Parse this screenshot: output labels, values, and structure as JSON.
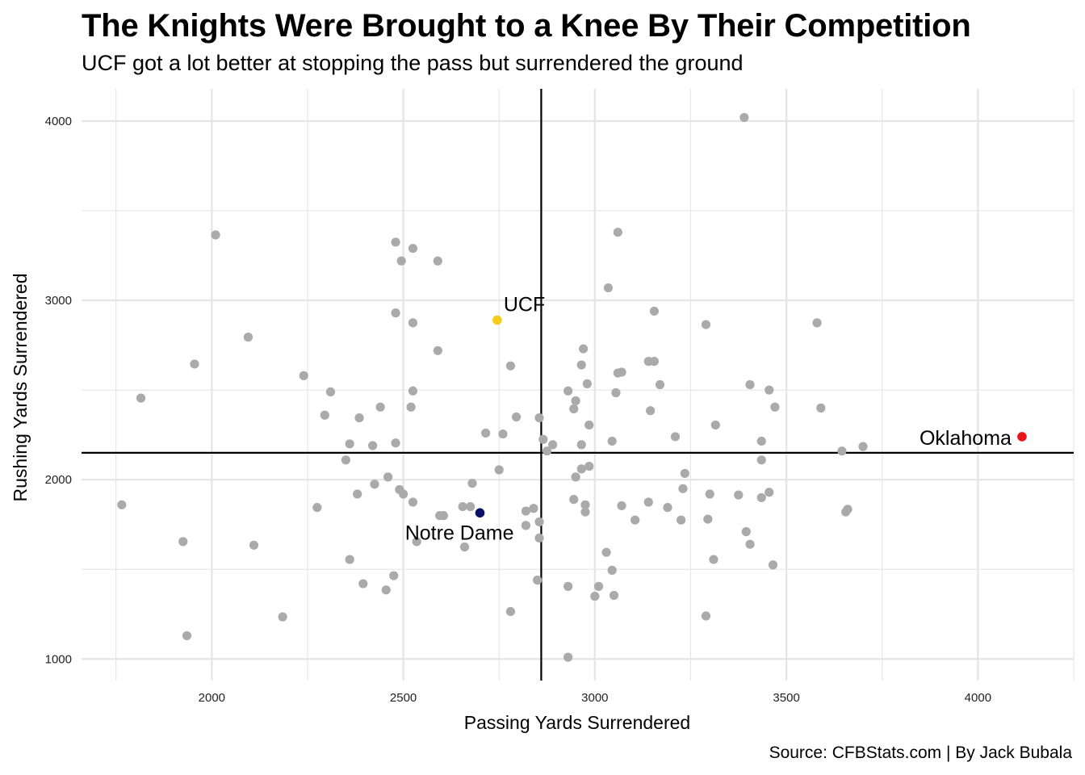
{
  "chart_data": {
    "type": "scatter",
    "title": "The Knights Were Brought to a Knee By Their Competition",
    "subtitle": "UCF got a lot better at stopping the pass but surrendered the ground",
    "caption": "Source: CFBStats.com | By Jack Bubala",
    "xlabel": "Passing Yards Surrendered",
    "ylabel": "Rushing Yards Surrendered",
    "xlim": [
      1660,
      4250
    ],
    "ylim": [
      880,
      4180
    ],
    "x_ticks": [
      2000,
      2500,
      3000,
      3500,
      4000
    ],
    "y_ticks": [
      1000,
      2000,
      3000,
      4000
    ],
    "grid": true,
    "reference_lines": {
      "x": 2860,
      "y": 2150
    },
    "colors": {
      "default": "#aaaaaa",
      "ucf": "#f6cc1b",
      "notre_dame": "#0c1168",
      "oklahoma": "#e8141a",
      "grid": "#e6e6e6",
      "reference": "#000000"
    },
    "highlighted": [
      {
        "label": "UCF",
        "x": 2745,
        "y": 2890,
        "color": "#f6cc1b"
      },
      {
        "label": "Notre Dame",
        "x": 2700,
        "y": 1815,
        "color": "#0c1168"
      },
      {
        "label": "Oklahoma",
        "x": 4115,
        "y": 2240,
        "color": "#e8141a"
      }
    ],
    "points": [
      [
        3390,
        4020
      ],
      [
        2010,
        3365
      ],
      [
        3060,
        3380
      ],
      [
        2480,
        3325
      ],
      [
        2525,
        3290
      ],
      [
        2495,
        3220
      ],
      [
        2590,
        3220
      ],
      [
        3035,
        3070
      ],
      [
        2480,
        2930
      ],
      [
        3155,
        2940
      ],
      [
        2525,
        2875
      ],
      [
        3290,
        2865
      ],
      [
        3580,
        2875
      ],
      [
        2095,
        2795
      ],
      [
        2590,
        2720
      ],
      [
        2970,
        2730
      ],
      [
        1955,
        2645
      ],
      [
        2780,
        2635
      ],
      [
        2965,
        2640
      ],
      [
        3140,
        2660
      ],
      [
        3155,
        2660
      ],
      [
        3060,
        2595
      ],
      [
        3070,
        2600
      ],
      [
        2240,
        2580
      ],
      [
        2980,
        2535
      ],
      [
        3170,
        2530
      ],
      [
        3405,
        2530
      ],
      [
        2930,
        2495
      ],
      [
        3055,
        2485
      ],
      [
        3455,
        2500
      ],
      [
        1815,
        2455
      ],
      [
        2310,
        2490
      ],
      [
        2525,
        2495
      ],
      [
        2950,
        2440
      ],
      [
        2440,
        2405
      ],
      [
        2520,
        2405
      ],
      [
        2945,
        2395
      ],
      [
        3145,
        2385
      ],
      [
        3470,
        2405
      ],
      [
        3590,
        2400
      ],
      [
        2295,
        2360
      ],
      [
        2385,
        2345
      ],
      [
        2795,
        2350
      ],
      [
        2855,
        2345
      ],
      [
        2985,
        2305
      ],
      [
        3315,
        2305
      ],
      [
        2715,
        2260
      ],
      [
        2760,
        2255
      ],
      [
        2865,
        2225
      ],
      [
        3045,
        2215
      ],
      [
        3210,
        2240
      ],
      [
        3435,
        2215
      ],
      [
        2360,
        2200
      ],
      [
        2420,
        2190
      ],
      [
        2480,
        2205
      ],
      [
        2890,
        2195
      ],
      [
        2965,
        2195
      ],
      [
        2875,
        2160
      ],
      [
        3645,
        2160
      ],
      [
        3700,
        2185
      ],
      [
        2350,
        2110
      ],
      [
        3435,
        2110
      ],
      [
        2750,
        2055
      ],
      [
        2965,
        2060
      ],
      [
        2985,
        2075
      ],
      [
        3235,
        2035
      ],
      [
        2460,
        2015
      ],
      [
        2950,
        2015
      ],
      [
        2425,
        1975
      ],
      [
        2680,
        1980
      ],
      [
        2490,
        1945
      ],
      [
        2500,
        1920
      ],
      [
        2380,
        1920
      ],
      [
        3230,
        1950
      ],
      [
        3300,
        1920
      ],
      [
        3375,
        1915
      ],
      [
        3435,
        1900
      ],
      [
        3455,
        1930
      ],
      [
        2525,
        1875
      ],
      [
        2945,
        1890
      ],
      [
        3140,
        1875
      ],
      [
        2655,
        1850
      ],
      [
        2675,
        1850
      ],
      [
        2840,
        1840
      ],
      [
        2975,
        1860
      ],
      [
        3070,
        1855
      ],
      [
        3190,
        1845
      ],
      [
        3660,
        1835
      ],
      [
        2275,
        1845
      ],
      [
        1765,
        1860
      ],
      [
        2820,
        1825
      ],
      [
        2975,
        1820
      ],
      [
        3655,
        1820
      ],
      [
        2595,
        1800
      ],
      [
        2605,
        1800
      ],
      [
        3105,
        1775
      ],
      [
        3225,
        1775
      ],
      [
        3295,
        1780
      ],
      [
        2820,
        1745
      ],
      [
        2855,
        1765
      ],
      [
        3395,
        1710
      ],
      [
        2855,
        1675
      ],
      [
        1925,
        1655
      ],
      [
        2110,
        1635
      ],
      [
        2535,
        1655
      ],
      [
        2660,
        1625
      ],
      [
        3405,
        1640
      ],
      [
        3030,
        1595
      ],
      [
        2360,
        1555
      ],
      [
        3310,
        1555
      ],
      [
        3045,
        1495
      ],
      [
        2475,
        1465
      ],
      [
        3465,
        1525
      ],
      [
        2395,
        1420
      ],
      [
        2455,
        1385
      ],
      [
        2850,
        1440
      ],
      [
        2930,
        1405
      ],
      [
        3010,
        1405
      ],
      [
        3000,
        1350
      ],
      [
        3050,
        1355
      ],
      [
        2780,
        1265
      ],
      [
        2185,
        1235
      ],
      [
        3290,
        1240
      ],
      [
        1935,
        1130
      ],
      [
        2930,
        1010
      ]
    ]
  }
}
